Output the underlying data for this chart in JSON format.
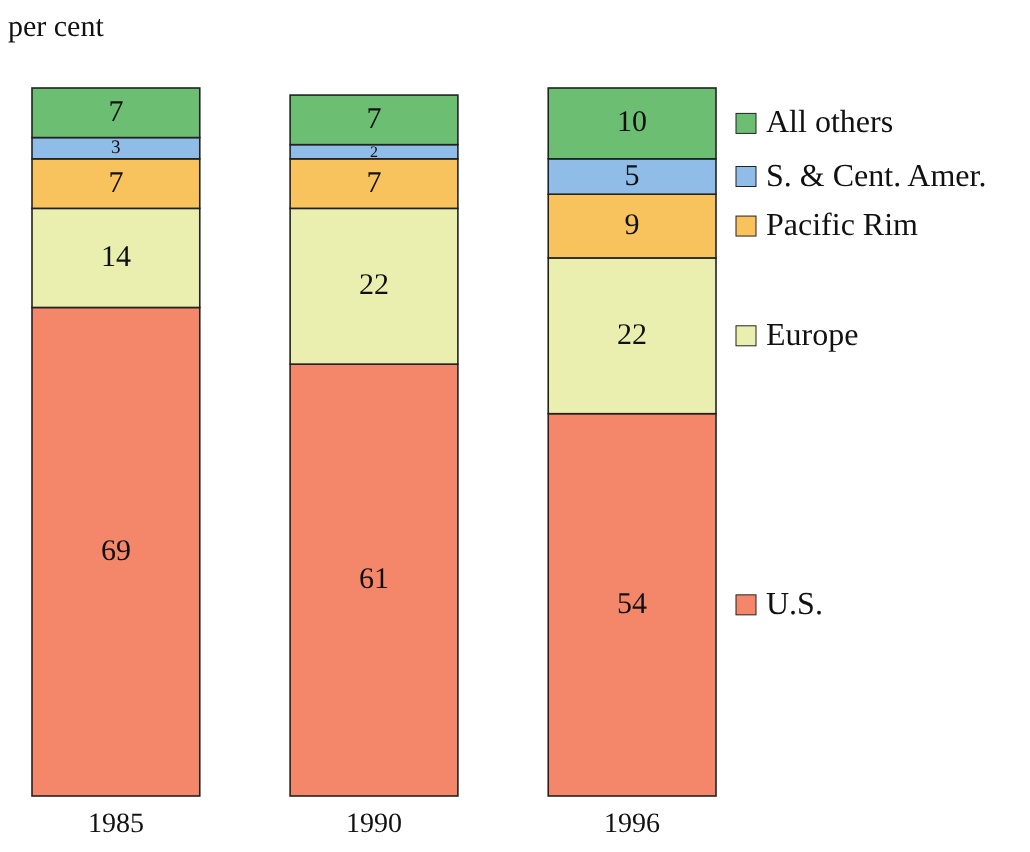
{
  "chart_data": {
    "type": "bar",
    "stacked": true,
    "ylabel": "per cent",
    "categories": [
      "1985",
      "1990",
      "1996"
    ],
    "series": [
      {
        "name": "U.S.",
        "color": "#f4876a",
        "values": [
          69,
          61,
          54
        ]
      },
      {
        "name": "Europe",
        "color": "#eaeeae",
        "values": [
          14,
          22,
          22
        ]
      },
      {
        "name": "Pacific Rim",
        "color": "#f8c25c",
        "values": [
          7,
          7,
          9
        ]
      },
      {
        "name": "S. & Cent. Amer.",
        "color": "#8fbde8",
        "values": [
          3,
          2,
          5
        ]
      },
      {
        "name": "All others",
        "color": "#6cbf72",
        "values": [
          7,
          7,
          10
        ]
      }
    ],
    "ylim": [
      0,
      100
    ],
    "data_labels": true,
    "legend": "right",
    "tick_labels": "x"
  }
}
